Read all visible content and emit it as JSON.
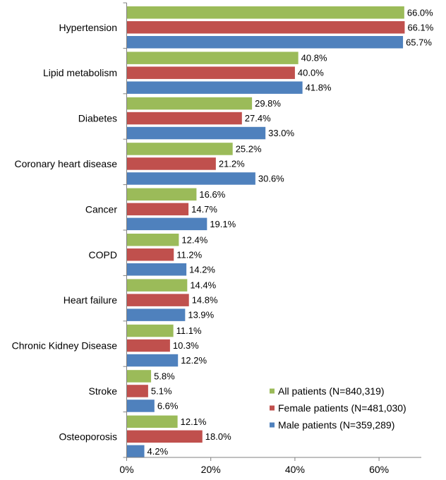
{
  "chart_data": {
    "type": "bar",
    "orientation": "horizontal",
    "categories": [
      "Hypertension",
      "Lipid metabolism",
      "Diabetes",
      "Coronary heart disease",
      "Cancer",
      "COPD",
      "Heart failure",
      "Chronic Kidney Disease",
      "Stroke",
      "Osteoporosis"
    ],
    "series": [
      {
        "name": "All patients (N=840,319)",
        "color": "#9BBB59",
        "values": [
          66.0,
          40.8,
          29.8,
          25.2,
          16.6,
          12.4,
          14.4,
          11.1,
          5.8,
          12.1
        ],
        "labels": [
          "66.0%",
          "40.8%",
          "29.8%",
          "25.2%",
          "16.6%",
          "12.4%",
          "14.4%",
          "11.1%",
          "5.8%",
          "12.1%"
        ]
      },
      {
        "name": "Female patients (N=481,030)",
        "color": "#C0504D",
        "values": [
          66.1,
          40.0,
          27.4,
          21.2,
          14.7,
          11.2,
          14.8,
          10.3,
          5.1,
          18.0
        ],
        "labels": [
          "66.1%",
          "40.0%",
          "27.4%",
          "21.2%",
          "14.7%",
          "11.2%",
          "14.8%",
          "10.3%",
          "5.1%",
          "18.0%"
        ]
      },
      {
        "name": "Male patients (N=359,289)",
        "color": "#4F81BD",
        "values": [
          65.7,
          41.8,
          33.0,
          30.6,
          19.1,
          14.2,
          13.9,
          12.2,
          6.6,
          4.2
        ],
        "labels": [
          "65.7%",
          "41.8%",
          "33.0%",
          "30.6%",
          "19.1%",
          "14.2%",
          "13.9%",
          "12.2%",
          "6.6%",
          "4.2%"
        ]
      }
    ],
    "x_ticks": [
      0,
      20,
      40,
      60
    ],
    "x_tick_labels": [
      "0%",
      "20%",
      "40%",
      "60%"
    ],
    "xlim": [
      0,
      70
    ],
    "title": "",
    "xlabel": "",
    "ylabel": "",
    "grid": false,
    "legend_position": "bottom-right"
  }
}
